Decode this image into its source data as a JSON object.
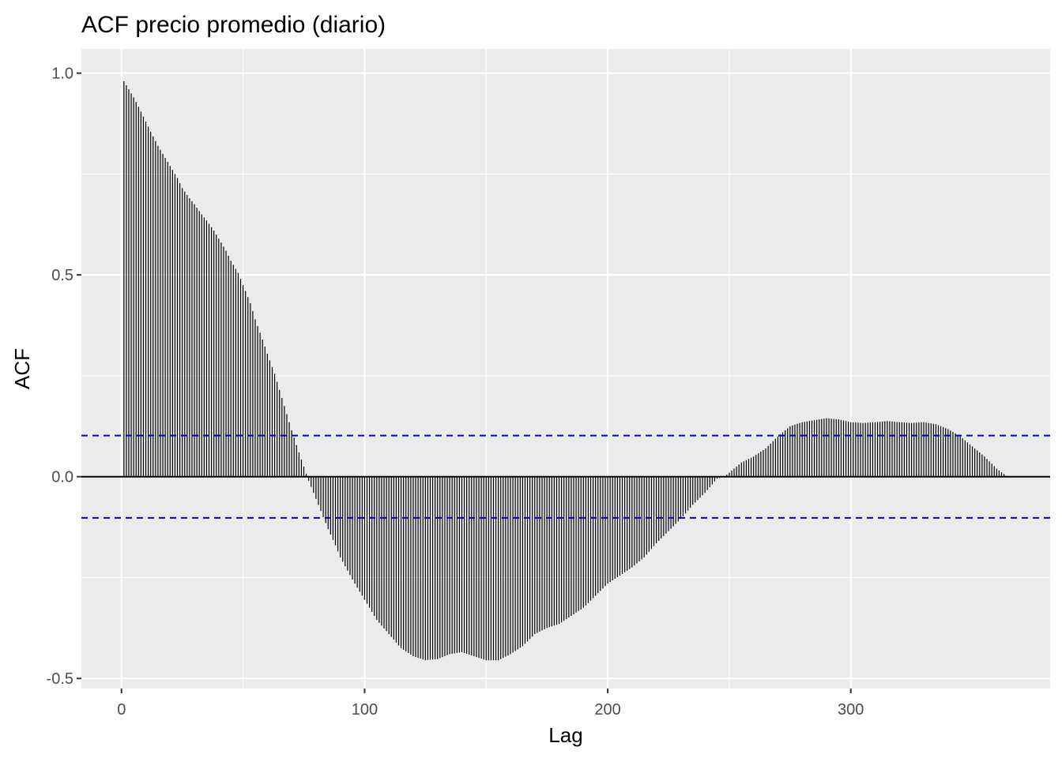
{
  "chart_data": {
    "type": "bar",
    "title": "ACF precio promedio (diario)",
    "xlabel": "Lag",
    "ylabel": "ACF",
    "xlim": [
      -16.5,
      382
    ],
    "ylim": [
      -0.525,
      1.06
    ],
    "x_ticks": [
      0,
      100,
      200,
      300
    ],
    "x_tick_labels": [
      "0",
      "100",
      "200",
      "300"
    ],
    "y_ticks": [
      -0.5,
      0.0,
      0.5,
      1.0
    ],
    "y_tick_labels": [
      "-0.5",
      "0.0",
      "0.5",
      "1.0"
    ],
    "confidence_bounds": [
      0.102,
      -0.102
    ],
    "grid": true,
    "lags": {
      "start": 1,
      "end": 364
    },
    "profile": [
      [
        1,
        0.98
      ],
      [
        3,
        0.96
      ],
      [
        5,
        0.94
      ],
      [
        8,
        0.905
      ],
      [
        10,
        0.88
      ],
      [
        12,
        0.855
      ],
      [
        15,
        0.82
      ],
      [
        18,
        0.79
      ],
      [
        20,
        0.77
      ],
      [
        23,
        0.74
      ],
      [
        25,
        0.715
      ],
      [
        28,
        0.69
      ],
      [
        30,
        0.675
      ],
      [
        33,
        0.65
      ],
      [
        35,
        0.635
      ],
      [
        38,
        0.61
      ],
      [
        40,
        0.59
      ],
      [
        43,
        0.56
      ],
      [
        45,
        0.535
      ],
      [
        48,
        0.505
      ],
      [
        50,
        0.475
      ],
      [
        53,
        0.43
      ],
      [
        55,
        0.39
      ],
      [
        58,
        0.34
      ],
      [
        60,
        0.305
      ],
      [
        63,
        0.255
      ],
      [
        65,
        0.215
      ],
      [
        68,
        0.155
      ],
      [
        70,
        0.115
      ],
      [
        73,
        0.06
      ],
      [
        75,
        0.025
      ],
      [
        77,
        -0.01
      ],
      [
        80,
        -0.055
      ],
      [
        83,
        -0.1
      ],
      [
        85,
        -0.13
      ],
      [
        88,
        -0.17
      ],
      [
        90,
        -0.2
      ],
      [
        95,
        -0.255
      ],
      [
        100,
        -0.305
      ],
      [
        105,
        -0.355
      ],
      [
        110,
        -0.39
      ],
      [
        115,
        -0.425
      ],
      [
        120,
        -0.445
      ],
      [
        125,
        -0.455
      ],
      [
        130,
        -0.452
      ],
      [
        135,
        -0.44
      ],
      [
        140,
        -0.435
      ],
      [
        145,
        -0.445
      ],
      [
        150,
        -0.455
      ],
      [
        155,
        -0.455
      ],
      [
        160,
        -0.44
      ],
      [
        165,
        -0.42
      ],
      [
        170,
        -0.39
      ],
      [
        175,
        -0.375
      ],
      [
        180,
        -0.365
      ],
      [
        185,
        -0.345
      ],
      [
        190,
        -0.325
      ],
      [
        195,
        -0.295
      ],
      [
        200,
        -0.265
      ],
      [
        205,
        -0.245
      ],
      [
        210,
        -0.225
      ],
      [
        215,
        -0.2
      ],
      [
        220,
        -0.165
      ],
      [
        225,
        -0.135
      ],
      [
        230,
        -0.105
      ],
      [
        235,
        -0.07
      ],
      [
        240,
        -0.04
      ],
      [
        245,
        -0.005
      ],
      [
        248,
        0.0
      ],
      [
        250,
        0.01
      ],
      [
        255,
        0.035
      ],
      [
        260,
        0.05
      ],
      [
        265,
        0.07
      ],
      [
        270,
        0.1
      ],
      [
        275,
        0.125
      ],
      [
        280,
        0.135
      ],
      [
        285,
        0.14
      ],
      [
        290,
        0.145
      ],
      [
        295,
        0.142
      ],
      [
        300,
        0.135
      ],
      [
        305,
        0.133
      ],
      [
        310,
        0.135
      ],
      [
        315,
        0.138
      ],
      [
        320,
        0.135
      ],
      [
        325,
        0.133
      ],
      [
        330,
        0.135
      ],
      [
        335,
        0.13
      ],
      [
        340,
        0.118
      ],
      [
        345,
        0.1
      ],
      [
        350,
        0.075
      ],
      [
        355,
        0.05
      ],
      [
        360,
        0.02
      ],
      [
        364,
        0.002
      ]
    ],
    "colors": {
      "panel": "#ebebeb",
      "grid": "#ffffff",
      "bars": "#000000",
      "zero_line": "#000000",
      "confidence": "#0000cc",
      "tick_text": "#4d4d4d",
      "tick_mark": "#333333"
    }
  }
}
